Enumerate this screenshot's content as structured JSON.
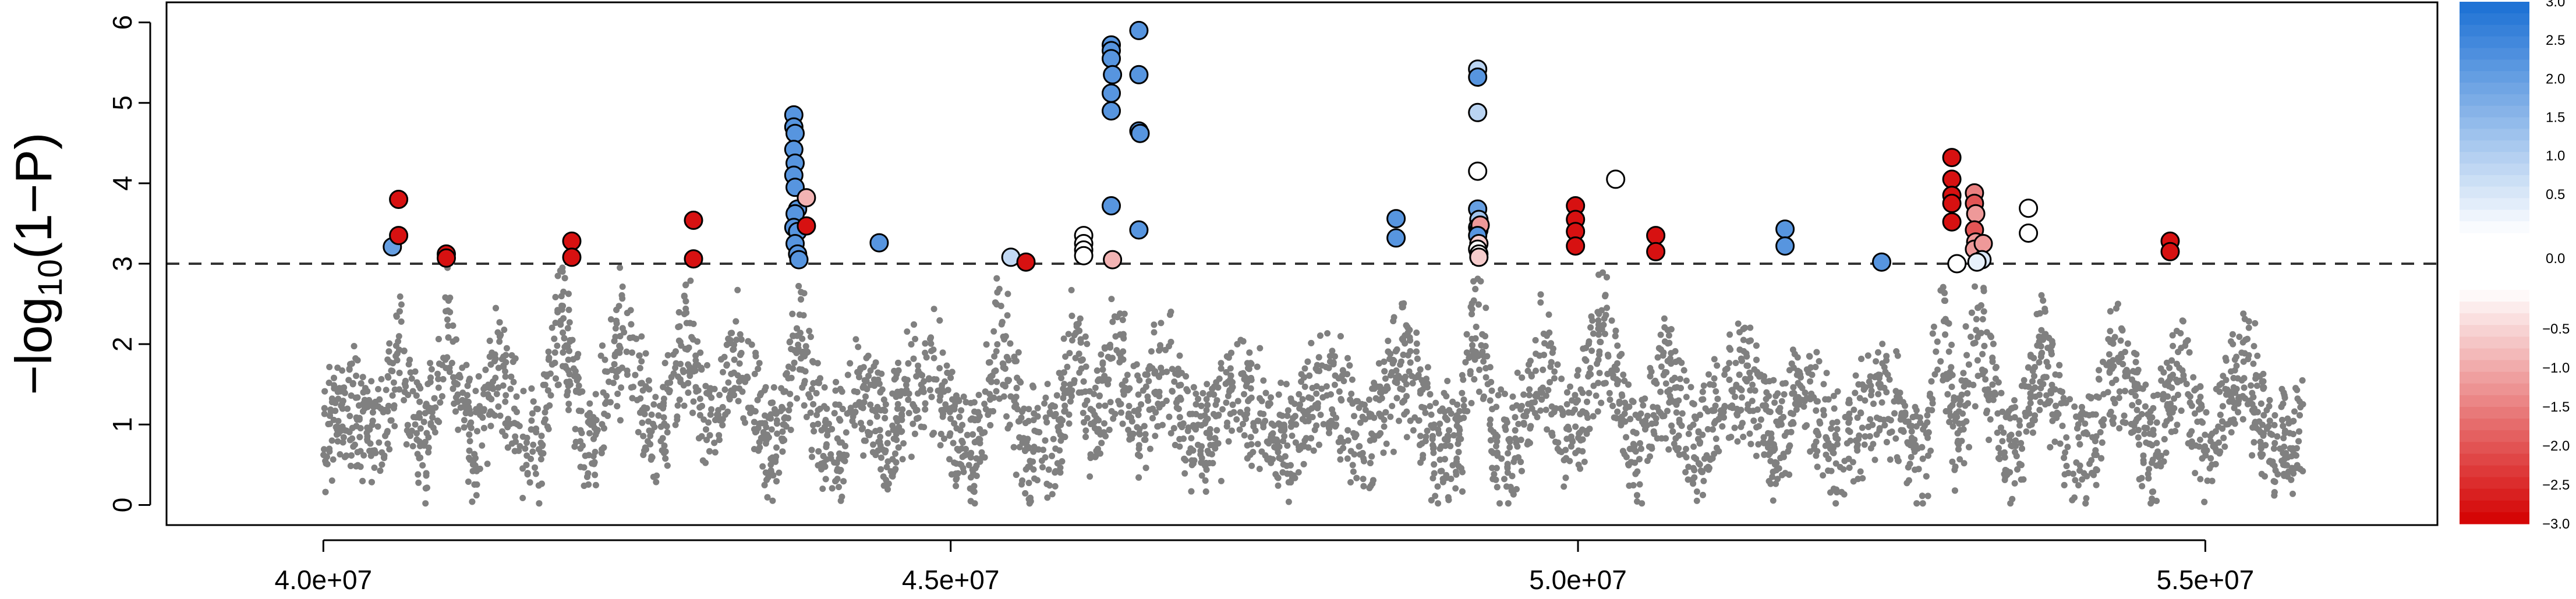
{
  "chart_data": {
    "type": "scatter",
    "title": "",
    "xlabel": "",
    "ylabel": {
      "prefix": "−log",
      "sub": "10",
      "suffix": "(1−P)"
    },
    "xlim": [
      38750000,
      56850000
    ],
    "ylim": [
      -0.25,
      6.25
    ],
    "x_ticks": [
      {
        "value": 40000000,
        "label": "4.0e+07"
      },
      {
        "value": 45000000,
        "label": "4.5e+07"
      },
      {
        "value": 50000000,
        "label": "5.0e+07"
      },
      {
        "value": 55000000,
        "label": "5.5e+07"
      }
    ],
    "y_ticks": [
      {
        "value": 0,
        "label": "0"
      },
      {
        "value": 1,
        "label": "1"
      },
      {
        "value": 2,
        "label": "2"
      },
      {
        "value": 3,
        "label": "3"
      },
      {
        "value": 4,
        "label": "4"
      },
      {
        "value": 5,
        "label": "5"
      },
      {
        "value": 6,
        "label": "6"
      }
    ],
    "threshold": 3,
    "background_color": "#808080",
    "background_x_range": [
      40000000,
      55800000
    ],
    "background_clusters": [
      {
        "x": 40200000,
        "hw": 250000,
        "peak": 1.7
      },
      {
        "x": 40600000,
        "hw": 150000,
        "peak": 2.4
      },
      {
        "x": 41000000,
        "hw": 180000,
        "peak": 2.9
      },
      {
        "x": 41400000,
        "hw": 200000,
        "peak": 2.2
      },
      {
        "x": 41900000,
        "hw": 180000,
        "peak": 2.9
      },
      {
        "x": 42400000,
        "hw": 250000,
        "peak": 2.7
      },
      {
        "x": 42900000,
        "hw": 200000,
        "peak": 2.8
      },
      {
        "x": 43300000,
        "hw": 250000,
        "peak": 2.4
      },
      {
        "x": 43800000,
        "hw": 200000,
        "peak": 2.5
      },
      {
        "x": 44300000,
        "hw": 200000,
        "peak": 1.9
      },
      {
        "x": 44800000,
        "hw": 300000,
        "peak": 2.2
      },
      {
        "x": 45400000,
        "hw": 200000,
        "peak": 2.7
      },
      {
        "x": 46000000,
        "hw": 150000,
        "peak": 2.8
      },
      {
        "x": 46300000,
        "hw": 200000,
        "peak": 2.6
      },
      {
        "x": 46700000,
        "hw": 250000,
        "peak": 2.3
      },
      {
        "x": 47300000,
        "hw": 300000,
        "peak": 1.9
      },
      {
        "x": 48000000,
        "hw": 300000,
        "peak": 1.9
      },
      {
        "x": 48600000,
        "hw": 250000,
        "peak": 2.4
      },
      {
        "x": 49200000,
        "hw": 150000,
        "peak": 2.9
      },
      {
        "x": 49700000,
        "hw": 250000,
        "peak": 2.2
      },
      {
        "x": 50200000,
        "hw": 250000,
        "peak": 2.7
      },
      {
        "x": 50700000,
        "hw": 200000,
        "peak": 2.2
      },
      {
        "x": 51300000,
        "hw": 300000,
        "peak": 2.1
      },
      {
        "x": 51800000,
        "hw": 250000,
        "peak": 1.9
      },
      {
        "x": 52400000,
        "hw": 250000,
        "peak": 1.9
      },
      {
        "x": 52900000,
        "hw": 120000,
        "peak": 2.9
      },
      {
        "x": 53200000,
        "hw": 200000,
        "peak": 2.8
      },
      {
        "x": 53700000,
        "hw": 200000,
        "peak": 2.4
      },
      {
        "x": 54300000,
        "hw": 250000,
        "peak": 2.3
      },
      {
        "x": 54800000,
        "hw": 200000,
        "peak": 2.2
      },
      {
        "x": 55300000,
        "hw": 250000,
        "peak": 2.2
      }
    ],
    "highlighted_points": [
      {
        "x": 40550000,
        "y": 3.21,
        "v": 2.0
      },
      {
        "x": 40600000,
        "y": 3.8,
        "v": -2.8
      },
      {
        "x": 40600000,
        "y": 3.35,
        "v": -2.8
      },
      {
        "x": 40980000,
        "y": 3.12,
        "v": -2.8
      },
      {
        "x": 40980000,
        "y": 3.07,
        "v": -2.8
      },
      {
        "x": 41980000,
        "y": 3.28,
        "v": -2.8
      },
      {
        "x": 41980000,
        "y": 3.08,
        "v": -2.8
      },
      {
        "x": 42950000,
        "y": 3.54,
        "v": -2.8
      },
      {
        "x": 42950000,
        "y": 3.06,
        "v": -2.8
      },
      {
        "x": 43750000,
        "y": 4.85,
        "v": 2.2
      },
      {
        "x": 43750000,
        "y": 4.7,
        "v": 2.2
      },
      {
        "x": 43760000,
        "y": 4.62,
        "v": 2.2
      },
      {
        "x": 43750000,
        "y": 4.42,
        "v": 2.2
      },
      {
        "x": 43760000,
        "y": 4.25,
        "v": 2.2
      },
      {
        "x": 43750000,
        "y": 4.1,
        "v": 2.2
      },
      {
        "x": 43760000,
        "y": 3.95,
        "v": 2.2
      },
      {
        "x": 43780000,
        "y": 3.68,
        "v": 2.2
      },
      {
        "x": 43760000,
        "y": 3.62,
        "v": 2.2
      },
      {
        "x": 43750000,
        "y": 3.45,
        "v": 2.2
      },
      {
        "x": 43780000,
        "y": 3.4,
        "v": 2.2
      },
      {
        "x": 43760000,
        "y": 3.25,
        "v": 2.2
      },
      {
        "x": 43780000,
        "y": 3.12,
        "v": 2.2
      },
      {
        "x": 43790000,
        "y": 3.05,
        "v": 2.2
      },
      {
        "x": 43850000,
        "y": 3.82,
        "v": -0.9
      },
      {
        "x": 43850000,
        "y": 3.47,
        "v": -2.8
      },
      {
        "x": 44430000,
        "y": 3.26,
        "v": 2.2
      },
      {
        "x": 45480000,
        "y": 3.08,
        "v": 0.8
      },
      {
        "x": 45600000,
        "y": 3.02,
        "v": -2.8
      },
      {
        "x": 46060000,
        "y": 3.35,
        "v": 0.0
      },
      {
        "x": 46060000,
        "y": 3.25,
        "v": 0.0
      },
      {
        "x": 46060000,
        "y": 3.17,
        "v": 0.0
      },
      {
        "x": 46060000,
        "y": 3.1,
        "v": 0.0
      },
      {
        "x": 46280000,
        "y": 5.72,
        "v": 2.2
      },
      {
        "x": 46280000,
        "y": 5.65,
        "v": 2.2
      },
      {
        "x": 46280000,
        "y": 5.55,
        "v": 2.2
      },
      {
        "x": 46290000,
        "y": 5.35,
        "v": 2.2
      },
      {
        "x": 46280000,
        "y": 5.12,
        "v": 2.2
      },
      {
        "x": 46280000,
        "y": 4.9,
        "v": 2.2
      },
      {
        "x": 46280000,
        "y": 3.72,
        "v": 2.2
      },
      {
        "x": 46290000,
        "y": 3.05,
        "v": -0.9
      },
      {
        "x": 46500000,
        "y": 5.9,
        "v": 2.2
      },
      {
        "x": 46500000,
        "y": 5.35,
        "v": 2.2
      },
      {
        "x": 46500000,
        "y": 4.65,
        "v": 2.2
      },
      {
        "x": 46510000,
        "y": 4.62,
        "v": 2.2
      },
      {
        "x": 46500000,
        "y": 3.42,
        "v": 2.2
      },
      {
        "x": 48550000,
        "y": 3.56,
        "v": 2.2
      },
      {
        "x": 48550000,
        "y": 3.32,
        "v": 2.2
      },
      {
        "x": 49200000,
        "y": 5.42,
        "v": 0.9
      },
      {
        "x": 49200000,
        "y": 5.32,
        "v": 2.2
      },
      {
        "x": 49200000,
        "y": 4.88,
        "v": 0.9
      },
      {
        "x": 49200000,
        "y": 4.15,
        "v": 0.0
      },
      {
        "x": 49200000,
        "y": 3.68,
        "v": 2.0
      },
      {
        "x": 49210000,
        "y": 3.55,
        "v": 1.2
      },
      {
        "x": 49200000,
        "y": 3.45,
        "v": 2.0
      },
      {
        "x": 49210000,
        "y": 3.42,
        "v": 1.2
      },
      {
        "x": 49220000,
        "y": 3.48,
        "v": -1.2
      },
      {
        "x": 49200000,
        "y": 3.35,
        "v": 2.2
      },
      {
        "x": 49210000,
        "y": 3.25,
        "v": -0.6
      },
      {
        "x": 49200000,
        "y": 3.18,
        "v": 0.0
      },
      {
        "x": 49210000,
        "y": 3.12,
        "v": 0.0
      },
      {
        "x": 49210000,
        "y": 3.08,
        "v": -0.6
      },
      {
        "x": 49980000,
        "y": 3.72,
        "v": -2.8
      },
      {
        "x": 49980000,
        "y": 3.55,
        "v": -2.8
      },
      {
        "x": 49980000,
        "y": 3.4,
        "v": -2.8
      },
      {
        "x": 49980000,
        "y": 3.22,
        "v": -2.8
      },
      {
        "x": 50300000,
        "y": 4.05,
        "v": 0.0
      },
      {
        "x": 50620000,
        "y": 3.35,
        "v": -2.8
      },
      {
        "x": 50620000,
        "y": 3.15,
        "v": -2.8
      },
      {
        "x": 51650000,
        "y": 3.43,
        "v": 2.2
      },
      {
        "x": 51650000,
        "y": 3.22,
        "v": 2.2
      },
      {
        "x": 52420000,
        "y": 3.02,
        "v": 2.2
      },
      {
        "x": 52980000,
        "y": 4.32,
        "v": -2.8
      },
      {
        "x": 52980000,
        "y": 4.05,
        "v": -2.8
      },
      {
        "x": 52980000,
        "y": 3.85,
        "v": -2.8
      },
      {
        "x": 52980000,
        "y": 3.75,
        "v": -2.8
      },
      {
        "x": 52980000,
        "y": 3.52,
        "v": -2.8
      },
      {
        "x": 53020000,
        "y": 3.0,
        "v": 0.0
      },
      {
        "x": 53160000,
        "y": 3.88,
        "v": -1.5
      },
      {
        "x": 53160000,
        "y": 3.75,
        "v": -2.0
      },
      {
        "x": 53170000,
        "y": 3.62,
        "v": -1.2
      },
      {
        "x": 53160000,
        "y": 3.42,
        "v": -2.0
      },
      {
        "x": 53170000,
        "y": 3.27,
        "v": -1.2
      },
      {
        "x": 53160000,
        "y": 3.18,
        "v": -1.2
      },
      {
        "x": 53230000,
        "y": 3.25,
        "v": -1.2
      },
      {
        "x": 53220000,
        "y": 3.05,
        "v": 0.5
      },
      {
        "x": 53180000,
        "y": 3.02,
        "v": 0.3
      },
      {
        "x": 53590000,
        "y": 3.69,
        "v": 0.0
      },
      {
        "x": 53590000,
        "y": 3.38,
        "v": 0.0
      },
      {
        "x": 54720000,
        "y": 3.28,
        "v": -2.8
      },
      {
        "x": 54720000,
        "y": 3.15,
        "v": -2.8
      }
    ],
    "colorbar": {
      "blue_ticks": [
        {
          "value": 3.0,
          "label": "3.0"
        },
        {
          "value": 2.5,
          "label": "2.5"
        },
        {
          "value": 2.0,
          "label": "2.0"
        },
        {
          "value": 1.5,
          "label": "1.5"
        },
        {
          "value": 1.0,
          "label": "1.0"
        },
        {
          "value": 0.5,
          "label": "0.5"
        },
        {
          "value": 0.0,
          "label": "0.0"
        }
      ],
      "red_ticks": [
        {
          "value": -0.5,
          "label": "−0.5"
        },
        {
          "value": -1.0,
          "label": "−1.0"
        },
        {
          "value": -1.5,
          "label": "−1.5"
        },
        {
          "value": -2.0,
          "label": "−2.0"
        },
        {
          "value": -2.5,
          "label": "−2.5"
        },
        {
          "value": -3.0,
          "label": "−3.0"
        }
      ],
      "blue_dark": "#1a6fd4",
      "red_dark": "#d40000"
    }
  }
}
